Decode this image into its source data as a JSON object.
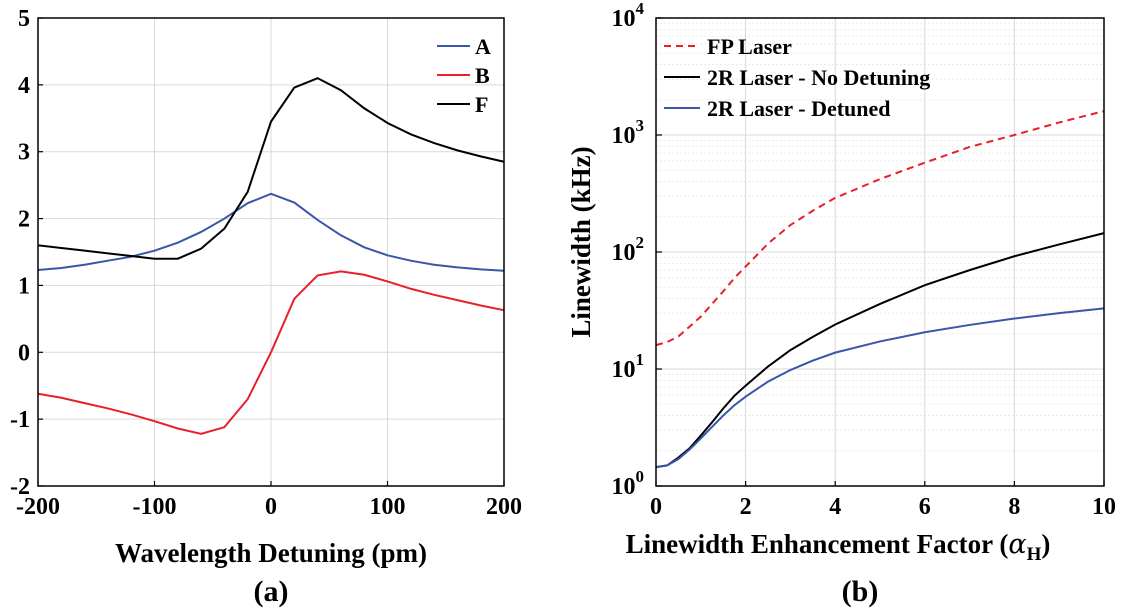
{
  "chart_data": [
    {
      "type": "line",
      "caption": "(a)",
      "xlabel": "Wavelength Detuning (pm)",
      "ylabel": "",
      "xlim": [
        -200,
        200
      ],
      "ylim": [
        -2,
        5
      ],
      "xticks": [
        -200,
        -100,
        0,
        100,
        200
      ],
      "yticks": [
        -2,
        -1,
        0,
        1,
        2,
        3,
        4,
        5
      ],
      "xtick_labels": [
        "-200",
        "-100",
        "0",
        "100",
        "200"
      ],
      "ytick_labels": [
        "-2",
        "-1",
        "0",
        "1",
        "2",
        "3",
        "4",
        "5"
      ],
      "grid": true,
      "legend_position": "top-right",
      "series": [
        {
          "name": "A",
          "color": "#3a56a8",
          "x": [
            -200,
            -180,
            -160,
            -140,
            -120,
            -100,
            -80,
            -60,
            -40,
            -20,
            0,
            20,
            40,
            60,
            80,
            100,
            120,
            140,
            160,
            180,
            200
          ],
          "y": [
            1.23,
            1.26,
            1.31,
            1.37,
            1.43,
            1.52,
            1.64,
            1.8,
            2.0,
            2.23,
            2.37,
            2.24,
            1.98,
            1.75,
            1.57,
            1.45,
            1.37,
            1.31,
            1.27,
            1.24,
            1.22
          ]
        },
        {
          "name": "B",
          "color": "#e8202a",
          "x": [
            -200,
            -180,
            -160,
            -140,
            -120,
            -100,
            -80,
            -60,
            -40,
            -20,
            0,
            20,
            40,
            60,
            80,
            100,
            120,
            140,
            160,
            180,
            200
          ],
          "y": [
            -0.62,
            -0.68,
            -0.76,
            -0.84,
            -0.93,
            -1.03,
            -1.14,
            -1.22,
            -1.12,
            -0.7,
            0.0,
            0.8,
            1.15,
            1.21,
            1.16,
            1.06,
            0.95,
            0.86,
            0.78,
            0.7,
            0.63
          ]
        },
        {
          "name": "F",
          "color": "#000000",
          "x": [
            -200,
            -180,
            -160,
            -140,
            -120,
            -100,
            -80,
            -60,
            -40,
            -20,
            0,
            20,
            40,
            60,
            80,
            100,
            120,
            140,
            160,
            180,
            200
          ],
          "y": [
            1.6,
            1.56,
            1.52,
            1.48,
            1.44,
            1.4,
            1.4,
            1.55,
            1.85,
            2.4,
            3.45,
            3.96,
            4.1,
            3.92,
            3.65,
            3.43,
            3.26,
            3.13,
            3.02,
            2.93,
            2.85
          ]
        }
      ]
    },
    {
      "type": "line",
      "scale_y": "log",
      "caption": "(b)",
      "xlabel": "Linewidth Enhancement Factor (",
      "xlabel_symbol": "α",
      "xlabel_subscript": "H",
      "xlabel_close": ")",
      "ylabel": "Linewidth (kHz)",
      "xlim": [
        0,
        10
      ],
      "ylim": [
        1,
        10000
      ],
      "xticks": [
        0,
        2,
        4,
        6,
        8,
        10
      ],
      "xtick_labels": [
        "0",
        "2",
        "4",
        "6",
        "8",
        "10"
      ],
      "yticks": [
        1,
        10,
        100,
        1000,
        10000
      ],
      "ytick_bases": [
        "10",
        "10",
        "10",
        "10",
        "10"
      ],
      "ytick_exponents": [
        "0",
        "1",
        "2",
        "3",
        "4"
      ],
      "grid": true,
      "legend_position": "top-left",
      "series": [
        {
          "name": "FP Laser",
          "color": "#e8202a",
          "dash": "dashed",
          "x": [
            0,
            0.25,
            0.5,
            0.75,
            1,
            1.25,
            1.5,
            1.75,
            2,
            2.5,
            3,
            3.5,
            4,
            5,
            6,
            7,
            8,
            9,
            10
          ],
          "y": [
            16,
            17,
            19,
            23,
            28,
            36,
            46,
            60,
            75,
            118,
            170,
            225,
            290,
            420,
            580,
            790,
            1000,
            1280,
            1600
          ]
        },
        {
          "name": "2R Laser - No Detuning",
          "color": "#000000",
          "dash": "solid",
          "x": [
            0,
            0.25,
            0.5,
            0.75,
            1,
            1.25,
            1.5,
            1.75,
            2,
            2.5,
            3,
            3.5,
            4,
            5,
            6,
            7,
            8,
            9,
            10
          ],
          "y": [
            1.45,
            1.5,
            1.75,
            2.1,
            2.7,
            3.5,
            4.6,
            5.9,
            7.2,
            10.5,
            14.5,
            18.8,
            24,
            36,
            52,
            70,
            92,
            116,
            145
          ]
        },
        {
          "name": "2R Laser - Detuned",
          "color": "#3a56a8",
          "dash": "solid",
          "x": [
            0,
            0.25,
            0.5,
            0.75,
            1,
            1.25,
            1.5,
            1.75,
            2,
            2.5,
            3,
            3.5,
            4,
            5,
            6,
            7,
            8,
            9,
            10
          ],
          "y": [
            1.45,
            1.5,
            1.7,
            2.05,
            2.55,
            3.2,
            4.0,
            4.9,
            5.8,
            7.8,
            9.8,
            11.8,
            13.8,
            17.2,
            20.6,
            23.8,
            27,
            30,
            33
          ]
        }
      ]
    }
  ]
}
